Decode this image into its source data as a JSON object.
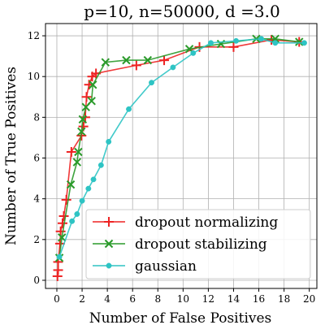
{
  "chart_data": {
    "type": "line",
    "title": "p=10, n=50000, d =3.0",
    "xlabel": "Number of False Positives",
    "ylabel": "Number of True Positives",
    "xlim": [
      -0.9,
      20.6
    ],
    "ylim": [
      -0.4,
      12.6
    ],
    "xticks": [
      0,
      2,
      4,
      6,
      8,
      10,
      12,
      14,
      16,
      18,
      20
    ],
    "yticks": [
      0,
      2,
      4,
      6,
      8,
      10,
      12
    ],
    "grid": true,
    "legend_position": "lower-right",
    "series": [
      {
        "name": "dropout normalizing",
        "color": "#ee2222",
        "marker": "plus",
        "points": [
          [
            0.05,
            0.2
          ],
          [
            0.1,
            0.5
          ],
          [
            0.1,
            0.9
          ],
          [
            0.25,
            1.8
          ],
          [
            0.3,
            2.4
          ],
          [
            0.45,
            2.8
          ],
          [
            0.55,
            3.15
          ],
          [
            0.75,
            3.95
          ],
          [
            1.15,
            6.3
          ],
          [
            1.95,
            7.1
          ],
          [
            2.1,
            7.55
          ],
          [
            2.25,
            8.0
          ],
          [
            2.35,
            9.0
          ],
          [
            2.55,
            9.6
          ],
          [
            2.8,
            10.0
          ],
          [
            3.1,
            10.15
          ],
          [
            6.3,
            10.55
          ],
          [
            8.5,
            10.8
          ],
          [
            11.3,
            11.45
          ],
          [
            14.0,
            11.45
          ],
          [
            17.0,
            11.8
          ],
          [
            19.2,
            11.7
          ]
        ]
      },
      {
        "name": "dropout stabilizing",
        "color": "#2a9a2a",
        "marker": "x",
        "points": [
          [
            0.2,
            1.1
          ],
          [
            0.4,
            2.1
          ],
          [
            1.1,
            4.7
          ],
          [
            1.6,
            5.8
          ],
          [
            1.7,
            6.3
          ],
          [
            1.95,
            7.3
          ],
          [
            2.05,
            7.9
          ],
          [
            2.3,
            8.5
          ],
          [
            2.75,
            8.8
          ],
          [
            2.85,
            9.6
          ],
          [
            3.85,
            10.7
          ],
          [
            5.5,
            10.8
          ],
          [
            7.2,
            10.8
          ],
          [
            10.5,
            11.35
          ],
          [
            13.0,
            11.6
          ],
          [
            15.8,
            11.85
          ],
          [
            17.3,
            11.85
          ],
          [
            19.2,
            11.7
          ]
        ]
      },
      {
        "name": "gaussian",
        "color": "#2ec4c4",
        "marker": "circle",
        "points": [
          [
            0.2,
            1.15
          ],
          [
            1.2,
            2.9
          ],
          [
            1.6,
            3.25
          ],
          [
            2.0,
            3.9
          ],
          [
            2.5,
            4.5
          ],
          [
            2.9,
            4.95
          ],
          [
            3.5,
            5.65
          ],
          [
            4.1,
            6.8
          ],
          [
            5.7,
            8.4
          ],
          [
            7.5,
            9.7
          ],
          [
            9.2,
            10.45
          ],
          [
            10.8,
            11.15
          ],
          [
            12.2,
            11.65
          ],
          [
            14.2,
            11.75
          ],
          [
            16.2,
            11.85
          ],
          [
            17.3,
            11.65
          ],
          [
            19.6,
            11.65
          ]
        ]
      }
    ]
  }
}
